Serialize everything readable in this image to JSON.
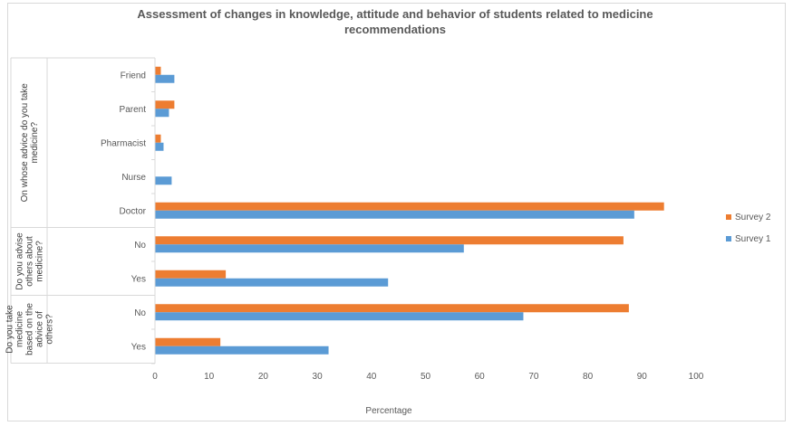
{
  "chart_data": {
    "type": "bar",
    "orientation": "horizontal",
    "title": "Assessment of changes in knowledge, attitude and behavior of students related to medicine recommendations",
    "title_lines": [
      "Assessment of changes in knowledge, attitude and behavior of students related to medicine",
      "recommendations"
    ],
    "xlabel": "Percentage",
    "xlim": [
      0,
      100
    ],
    "xticks": [
      0,
      10,
      20,
      30,
      40,
      50,
      60,
      70,
      80,
      90,
      100
    ],
    "grid": false,
    "legend_position": "right",
    "groups": [
      {
        "label": "On whose advice do you take medicine?",
        "label_lines": [
          "On whose advice do you take",
          "medicine?"
        ],
        "categories": [
          "Friend",
          "Parent",
          "Pharmacist",
          "Nurse",
          "Doctor"
        ]
      },
      {
        "label": "Do you advise others about medicine?",
        "label_lines": [
          "Do you advise",
          "others about",
          "medicine?"
        ],
        "categories": [
          "No",
          "Yes"
        ]
      },
      {
        "label": "Do you take medicine based on the advice of others?",
        "label_lines": [
          "Do you take",
          "medicine",
          "based on the",
          "advice of",
          "others?"
        ],
        "categories": [
          "No",
          "Yes"
        ]
      }
    ],
    "series": [
      {
        "name": "Survey 2",
        "color": "#ed7d31",
        "values": [
          1,
          3.5,
          1,
          0,
          94,
          86.5,
          13,
          87.5,
          12
        ]
      },
      {
        "name": "Survey 1",
        "color": "#5b9bd5",
        "values": [
          3.5,
          2.5,
          1.5,
          3,
          88.5,
          57,
          43,
          68,
          32
        ]
      }
    ]
  }
}
